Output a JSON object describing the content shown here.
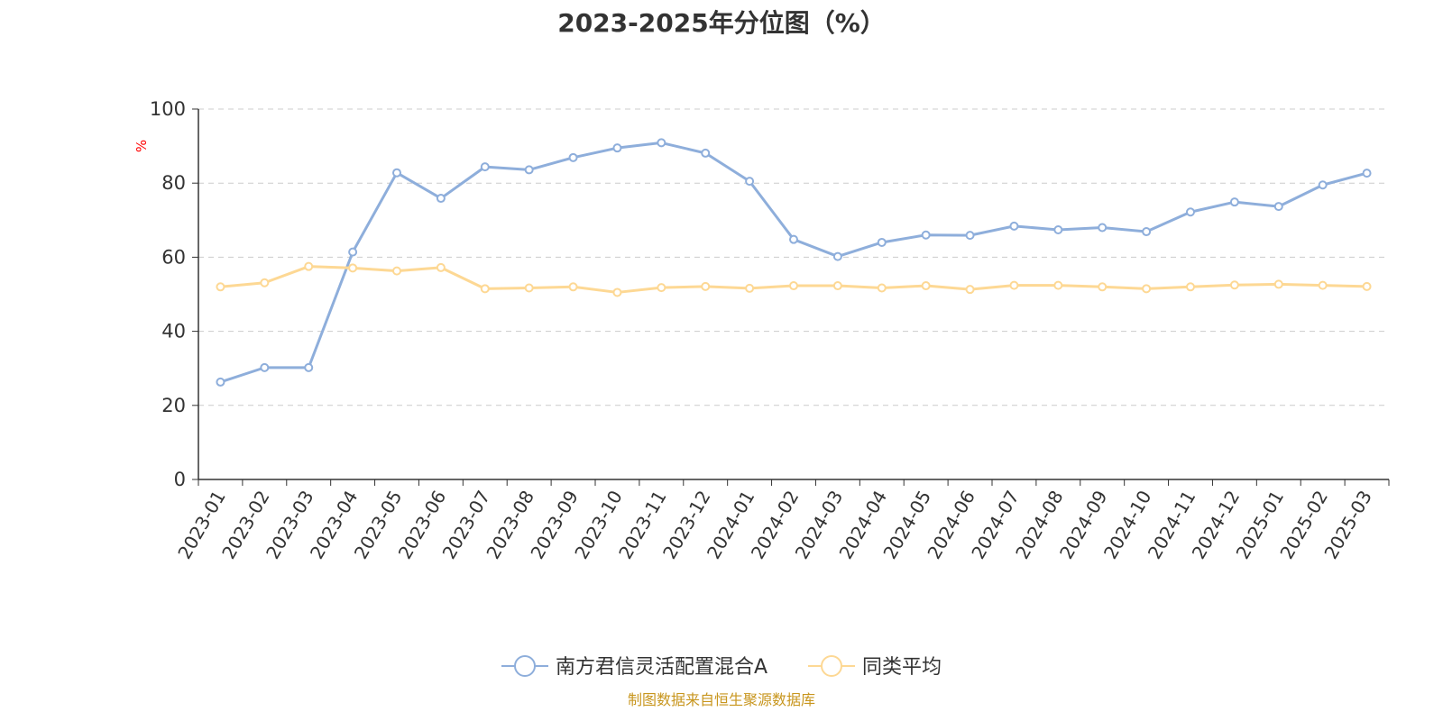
{
  "chart_data": {
    "type": "line",
    "title": "2023-2025年分位图（%）",
    "ylabel": "%",
    "xlabel": "",
    "ylim": [
      0,
      100
    ],
    "yticks": [
      "0",
      "20",
      "40",
      "60",
      "80",
      "100"
    ],
    "grid": true,
    "legend_position": "bottom",
    "categories": [
      "2023-01",
      "2023-02",
      "2023-03",
      "2023-04",
      "2023-05",
      "2023-06",
      "2023-07",
      "2023-08",
      "2023-09",
      "2023-10",
      "2023-11",
      "2023-12",
      "2024-01",
      "2024-02",
      "2024-03",
      "2024-04",
      "2024-05",
      "2024-06",
      "2024-07",
      "2024-08",
      "2024-09",
      "2024-10",
      "2024-11",
      "2024-12",
      "2025-01",
      "2025-02",
      "2025-03"
    ],
    "series": [
      {
        "name": "南方君信灵活配置混合A",
        "color": "#8eaedb",
        "values": [
          26.3,
          30.2,
          30.2,
          61.4,
          82.8,
          75.9,
          84.4,
          83.6,
          86.9,
          89.5,
          90.9,
          88.1,
          80.5,
          64.8,
          60.2,
          64.0,
          66.0,
          65.9,
          68.4,
          67.4,
          68.0,
          66.9,
          72.2,
          74.9,
          73.7,
          79.5,
          82.7
        ]
      },
      {
        "name": "同类平均",
        "color": "#fdd894",
        "values": [
          52.0,
          53.1,
          57.5,
          57.1,
          56.3,
          57.2,
          51.5,
          51.7,
          52.0,
          50.5,
          51.8,
          52.1,
          51.6,
          52.3,
          52.3,
          51.7,
          52.3,
          51.3,
          52.4,
          52.4,
          52.0,
          51.5,
          52.0,
          52.5,
          52.7,
          52.4,
          52.1
        ]
      }
    ]
  },
  "source_note": "制图数据来自恒生聚源数据库",
  "colors": {
    "title": "#333333",
    "axis": "#333333",
    "grid": "#cccccc",
    "ylabel": "#ff0000",
    "source_note": "#c8961e"
  }
}
